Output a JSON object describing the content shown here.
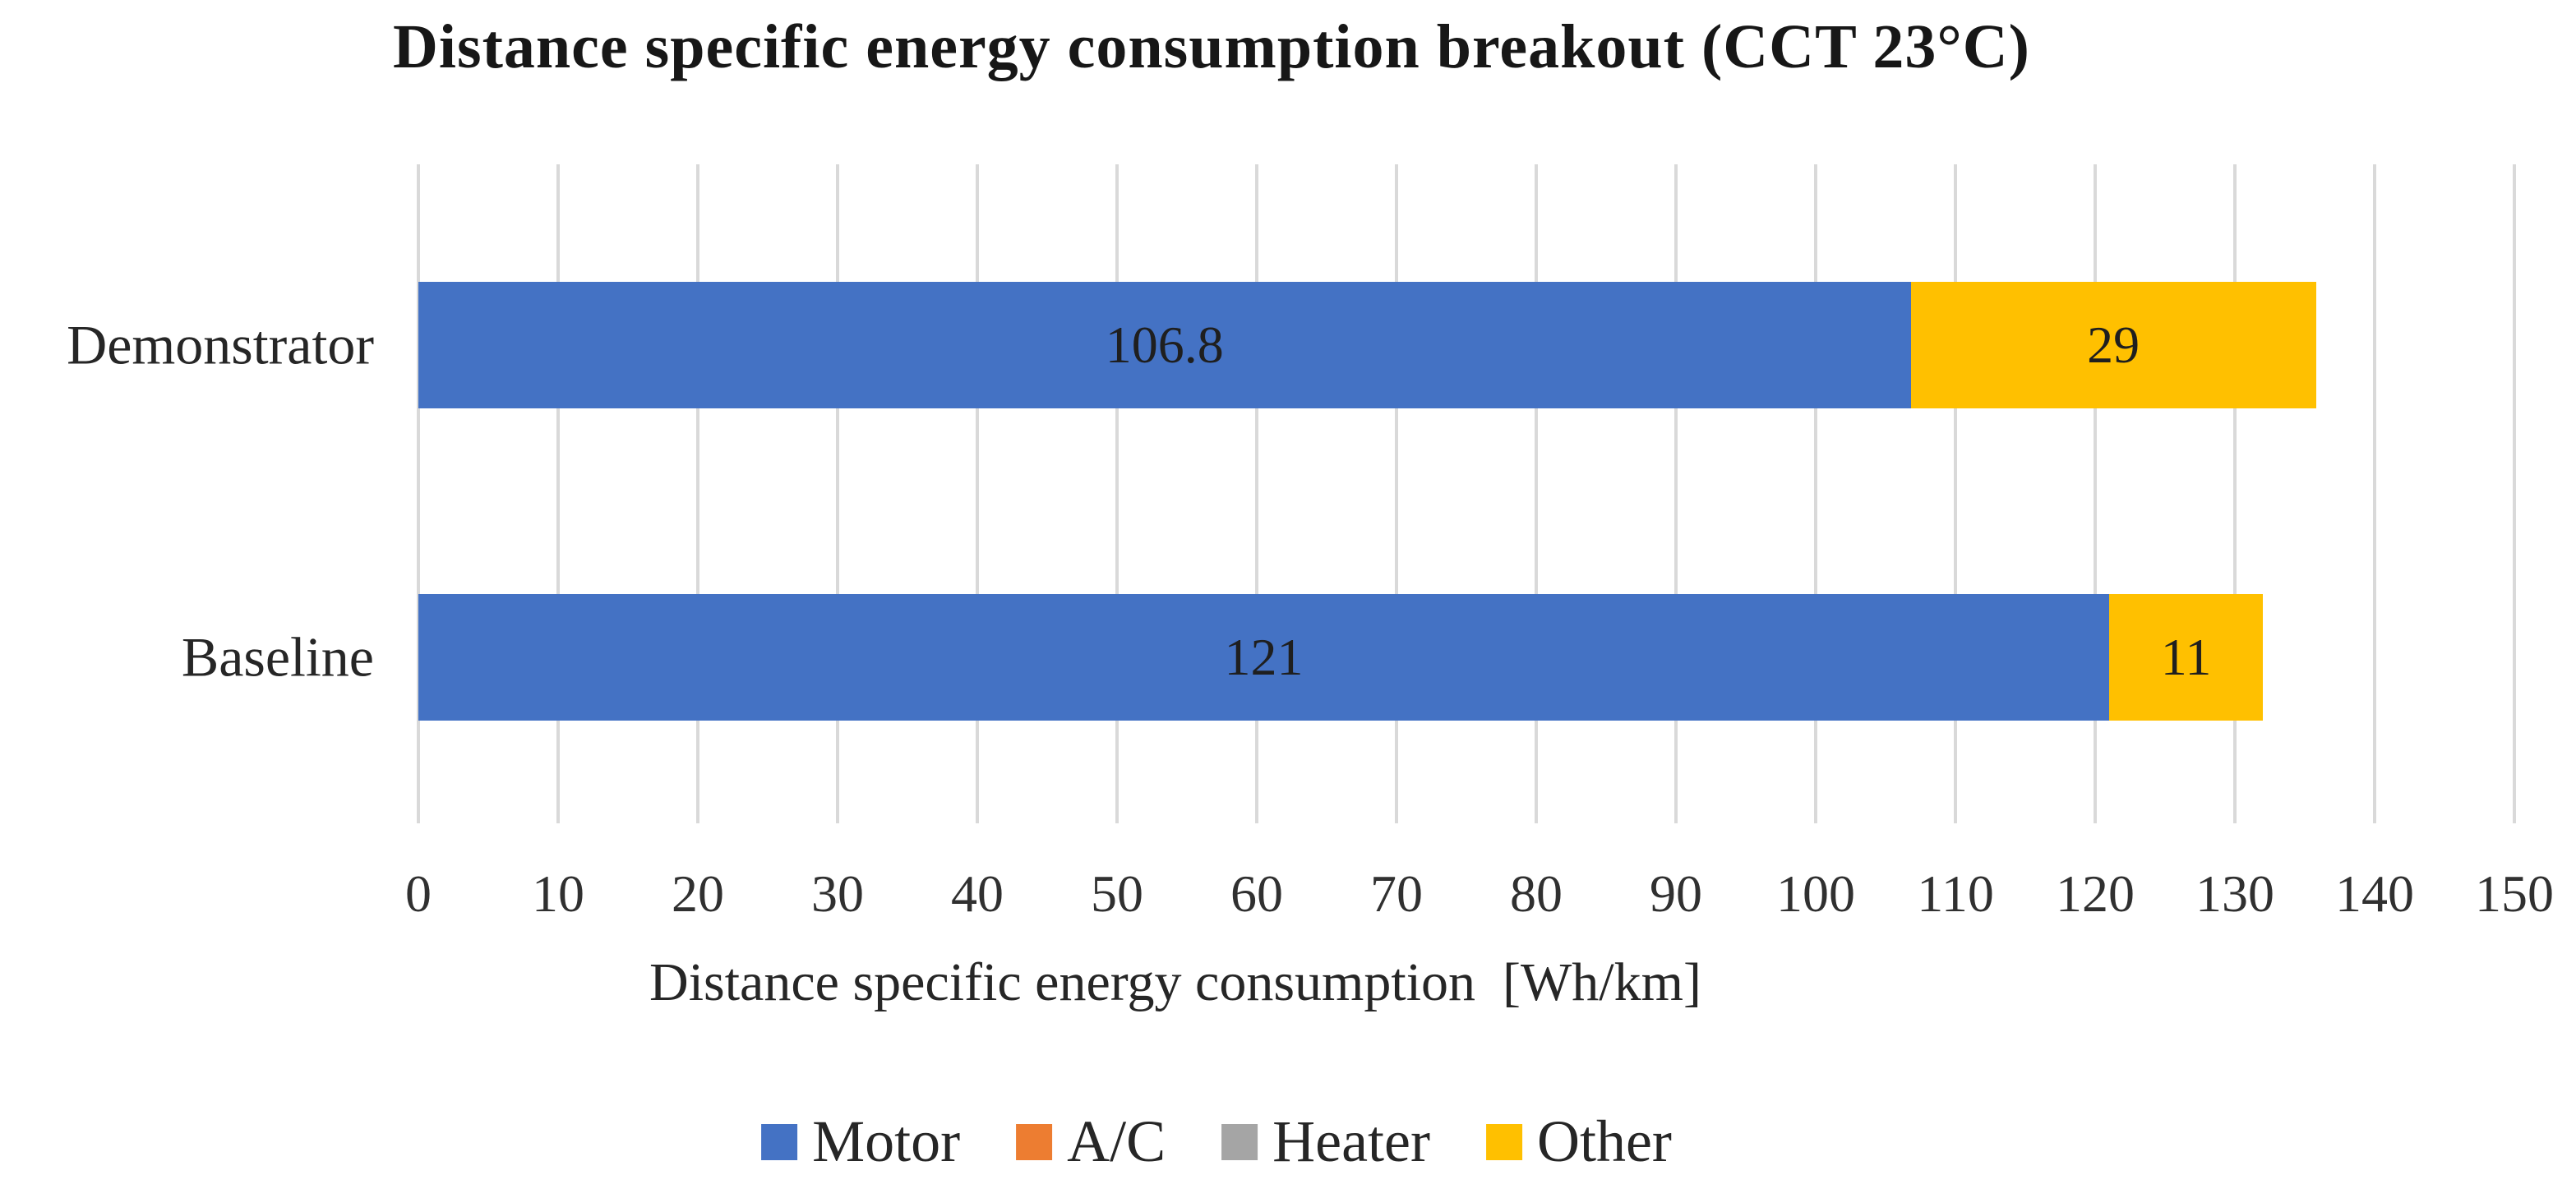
{
  "page": {
    "background": "#ffffff"
  },
  "chart_data": {
    "type": "bar",
    "orientation": "horizontal",
    "stacked": true,
    "title": "Distance specific energy consumption breakout (CCT 23°C)",
    "xlabel": "Distance specific energy consumption  [Wh/km]",
    "categories": [
      "Demonstrator",
      "Baseline"
    ],
    "series": [
      {
        "name": "Motor",
        "color": "#4472C4",
        "values": [
          106.8,
          121
        ],
        "labels": [
          "106.8",
          "121"
        ]
      },
      {
        "name": "A/C",
        "color": "#ED7D31",
        "values": [
          0,
          0
        ],
        "labels": [
          "",
          ""
        ]
      },
      {
        "name": "Heater",
        "color": "#A5A5A5",
        "values": [
          0,
          0
        ],
        "labels": [
          "",
          ""
        ]
      },
      {
        "name": "Other",
        "color": "#FFC000",
        "values": [
          29,
          11
        ],
        "labels": [
          "29",
          "11"
        ]
      }
    ],
    "xlim": [
      0,
      150
    ],
    "xtick_step": 10,
    "xtick_labels": [
      "0",
      "10",
      "20",
      "30",
      "40",
      "50",
      "60",
      "70",
      "80",
      "90",
      "100",
      "110",
      "120",
      "130",
      "140",
      "150"
    ],
    "grid": "vertical",
    "gridline_color": "#D9D9D9",
    "data_label_color": "#1f1f1f",
    "axis_text_color": "#303030",
    "legend_position": "bottom",
    "legend_entries": [
      "Motor",
      "A/C",
      "Heater",
      "Other"
    ]
  }
}
